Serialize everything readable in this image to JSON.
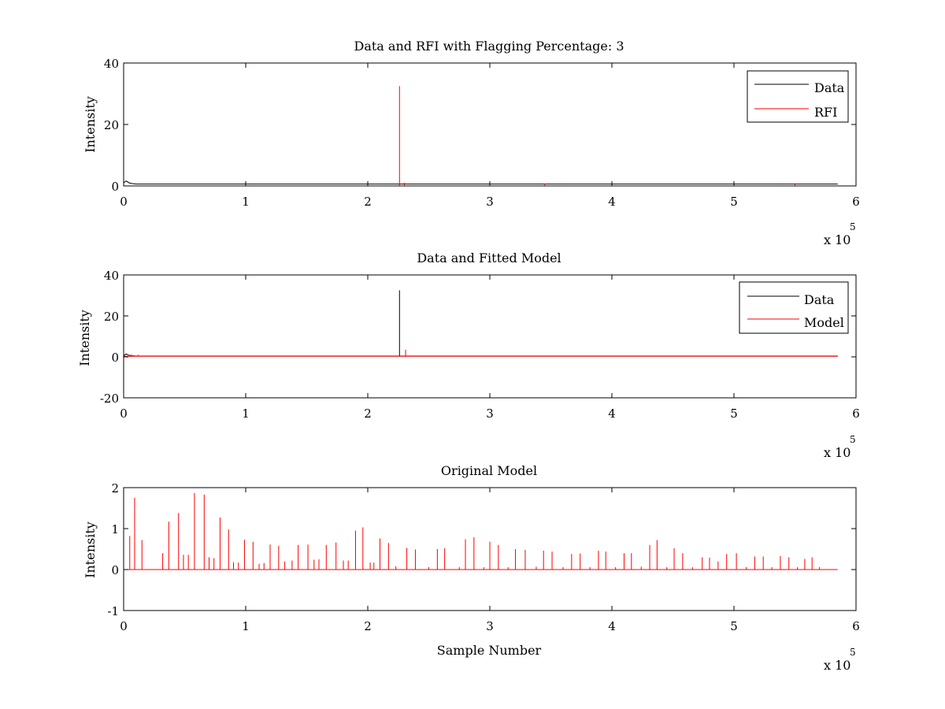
{
  "chart_data": [
    {
      "type": "line",
      "title": "Data and RFI with Flagging Percentage: 3",
      "xlabel": "",
      "ylabel": "Intensity",
      "xlim": [
        0,
        6
      ],
      "ylim": [
        0,
        40
      ],
      "x_ticks": [
        "0",
        "1",
        "2",
        "3",
        "4",
        "5",
        "6"
      ],
      "y_ticks": [
        "0",
        "20",
        "40"
      ],
      "x_multiplier": {
        "base": "x 10",
        "exponent": "5"
      },
      "legend": {
        "placement": "top-right",
        "entries": [
          "Data",
          "RFI"
        ]
      },
      "series": [
        {
          "name": "Data",
          "color": "#000000",
          "x_end": 5.85,
          "baseline": 0.6,
          "points": [
            [
              0.0,
              1.0
            ],
            [
              0.02,
              1.6
            ],
            [
              0.05,
              0.9
            ],
            [
              0.1,
              0.6
            ]
          ]
        },
        {
          "name": "RFI",
          "color": "#ff0000",
          "spikes": [
            [
              2.26,
              32.5
            ],
            [
              2.3,
              1.0
            ],
            [
              3.45,
              0.7
            ],
            [
              5.5,
              0.8
            ]
          ]
        }
      ]
    },
    {
      "type": "line",
      "title": "Data and Fitted Model",
      "xlabel": "",
      "ylabel": "Intensity",
      "xlim": [
        0,
        6
      ],
      "ylim": [
        -20,
        40
      ],
      "x_ticks": [
        "0",
        "1",
        "2",
        "3",
        "4",
        "5",
        "6"
      ],
      "y_ticks": [
        "-20",
        "0",
        "20",
        "40"
      ],
      "x_multiplier": {
        "base": "x 10",
        "exponent": "5"
      },
      "legend": {
        "placement": "top-right",
        "entries": [
          "Data",
          "Model"
        ]
      },
      "series": [
        {
          "name": "Data",
          "color": "#000000",
          "x_end": 5.85,
          "baseline": 0.4,
          "points": [
            [
              0.0,
              0.6
            ],
            [
              0.02,
              1.4
            ],
            [
              0.05,
              0.6
            ],
            [
              0.1,
              0.4
            ]
          ],
          "spikes": [
            [
              2.26,
              32.5
            ]
          ]
        },
        {
          "name": "Model",
          "color": "#ff0000",
          "x_end": 5.85,
          "baseline": 0.3,
          "spikes": [
            [
              2.31,
              3.5
            ],
            [
              0.06,
              1.2
            ],
            [
              0.12,
              1.0
            ]
          ]
        }
      ]
    },
    {
      "type": "line",
      "title": "Original Model",
      "xlabel": "Sample Number",
      "ylabel": "Intensity",
      "xlim": [
        0,
        6
      ],
      "ylim": [
        -1,
        2
      ],
      "x_ticks": [
        "0",
        "1",
        "2",
        "3",
        "4",
        "5",
        "6"
      ],
      "y_ticks": [
        "-1",
        "0",
        "1",
        "2"
      ],
      "x_multiplier": {
        "base": "x 10",
        "exponent": "5"
      },
      "series": [
        {
          "color": "#ff0000",
          "x_end": 5.85,
          "baseline": 0.0,
          "spikes": [
            [
              0.05,
              0.82
            ],
            [
              0.09,
              1.75
            ],
            [
              0.15,
              0.72
            ],
            [
              0.32,
              0.4
            ],
            [
              0.37,
              1.17
            ],
            [
              0.45,
              1.38
            ],
            [
              0.49,
              0.36
            ],
            [
              0.53,
              0.36
            ],
            [
              0.58,
              1.87
            ],
            [
              0.66,
              1.83
            ],
            [
              0.7,
              0.3
            ],
            [
              0.74,
              0.28
            ],
            [
              0.79,
              1.27
            ],
            [
              0.86,
              0.98
            ],
            [
              0.9,
              0.18
            ],
            [
              0.94,
              0.17
            ],
            [
              0.99,
              0.73
            ],
            [
              1.06,
              0.68
            ],
            [
              1.11,
              0.14
            ],
            [
              1.15,
              0.16
            ],
            [
              1.2,
              0.61
            ],
            [
              1.27,
              0.58
            ],
            [
              1.32,
              0.2
            ],
            [
              1.38,
              0.22
            ],
            [
              1.43,
              0.6
            ],
            [
              1.51,
              0.61
            ],
            [
              1.56,
              0.24
            ],
            [
              1.6,
              0.25
            ],
            [
              1.66,
              0.6
            ],
            [
              1.74,
              0.66
            ],
            [
              1.8,
              0.22
            ],
            [
              1.84,
              0.22
            ],
            [
              1.9,
              0.95
            ],
            [
              1.96,
              1.03
            ],
            [
              2.02,
              0.17
            ],
            [
              2.05,
              0.17
            ],
            [
              2.1,
              0.76
            ],
            [
              2.17,
              0.65
            ],
            [
              2.23,
              0.08
            ],
            [
              2.32,
              0.53
            ],
            [
              2.39,
              0.49
            ],
            [
              2.5,
              0.06
            ],
            [
              2.57,
              0.5
            ],
            [
              2.63,
              0.52
            ],
            [
              2.75,
              0.06
            ],
            [
              2.8,
              0.74
            ],
            [
              2.87,
              0.79
            ],
            [
              2.95,
              0.06
            ],
            [
              3.0,
              0.68
            ],
            [
              3.07,
              0.6
            ],
            [
              3.15,
              0.06
            ],
            [
              3.21,
              0.5
            ],
            [
              3.29,
              0.48
            ],
            [
              3.38,
              0.07
            ],
            [
              3.44,
              0.46
            ],
            [
              3.51,
              0.44
            ],
            [
              3.6,
              0.06
            ],
            [
              3.67,
              0.38
            ],
            [
              3.74,
              0.39
            ],
            [
              3.82,
              0.06
            ],
            [
              3.89,
              0.46
            ],
            [
              3.95,
              0.44
            ],
            [
              4.03,
              0.06
            ],
            [
              4.1,
              0.4
            ],
            [
              4.16,
              0.4
            ],
            [
              4.24,
              0.07
            ],
            [
              4.31,
              0.6
            ],
            [
              4.37,
              0.72
            ],
            [
              4.45,
              0.06
            ],
            [
              4.51,
              0.52
            ],
            [
              4.58,
              0.4
            ],
            [
              4.66,
              0.06
            ],
            [
              4.74,
              0.3
            ],
            [
              4.8,
              0.29
            ],
            [
              4.87,
              0.2
            ],
            [
              4.94,
              0.38
            ],
            [
              5.02,
              0.4
            ],
            [
              5.1,
              0.06
            ],
            [
              5.17,
              0.32
            ],
            [
              5.24,
              0.32
            ],
            [
              5.31,
              0.06
            ],
            [
              5.38,
              0.33
            ],
            [
              5.45,
              0.3
            ],
            [
              5.52,
              0.06
            ],
            [
              5.58,
              0.26
            ],
            [
              5.64,
              0.3
            ],
            [
              5.7,
              0.06
            ]
          ]
        }
      ]
    }
  ]
}
